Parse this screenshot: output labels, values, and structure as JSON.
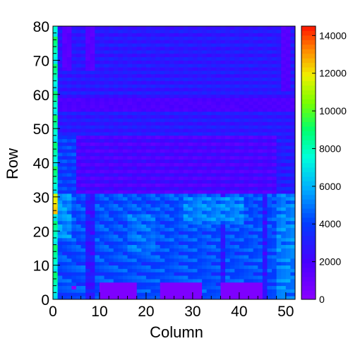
{
  "chart_data": {
    "type": "heatmap",
    "title": "",
    "xlabel": "Column",
    "ylabel": "Row",
    "xlim": [
      0,
      52
    ],
    "ylim": [
      0,
      80
    ],
    "zlim": [
      0,
      14500
    ],
    "x_ticks": [
      0,
      10,
      20,
      30,
      40,
      50
    ],
    "y_ticks": [
      0,
      10,
      20,
      30,
      40,
      50,
      60,
      70,
      80
    ],
    "z_ticks": [
      0,
      2000,
      4000,
      6000,
      8000,
      10000,
      12000,
      14000
    ],
    "colormap": "rainbow (violet low to red high)",
    "cols": 52,
    "rows": 80,
    "regions": {
      "low_blocks_rows_0_to_5": [
        {
          "col_start": 10,
          "col_end": 18,
          "value": 400
        },
        {
          "col_start": 23,
          "col_end": 32,
          "value": 400
        },
        {
          "col_start": 36,
          "col_end": 45,
          "value": 400
        }
      ],
      "lower_half_rows_0_to_30": 4500,
      "middle_band_rows_30_to_48": 1500,
      "upper_half_rows_48_to_80": 2500,
      "left_edge_column_0": 8000,
      "hot_spot_row_27_col_0": 13000
    }
  }
}
